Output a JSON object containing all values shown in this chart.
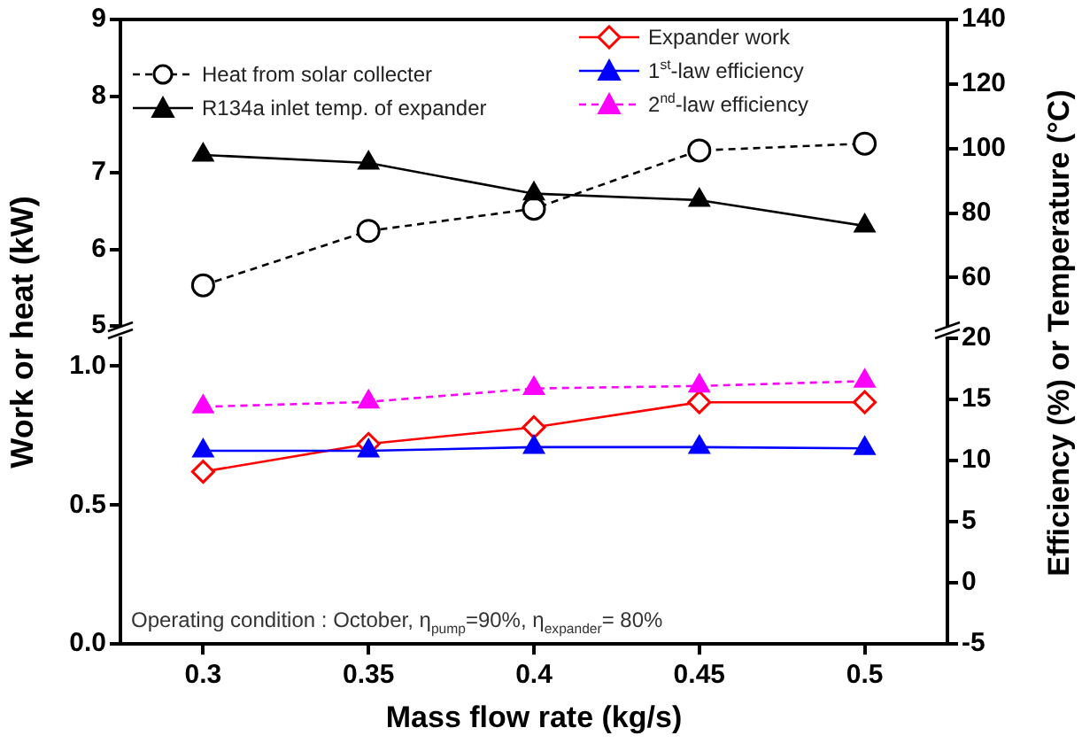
{
  "chart_data": [
    {
      "type": "line",
      "ylabel": "Work or heat (kW)",
      "y2label": "Efficiency (%) or Temperature (°C)",
      "legend": "top left",
      "tick_labels": "y",
      "x": [
        0.3,
        0.35,
        0.4,
        0.45,
        0.5
      ],
      "xlim": [
        0.275,
        0.525
      ],
      "ylim": [
        5,
        9
      ],
      "yticks": [
        5,
        6,
        7,
        8,
        9
      ],
      "y2lim": [
        45,
        140
      ],
      "y2ticks": [
        60,
        80,
        100,
        120,
        140
      ],
      "series": [
        {
          "name": "Heat from solar collecter",
          "color": "#000000",
          "marker": "circle",
          "line_style": "dashed",
          "values": [
            5.53,
            6.24,
            6.53,
            7.29,
            7.38
          ]
        },
        {
          "name": "R134a inlet temp. of expander",
          "color": "#000000",
          "axis": "y2",
          "marker": "triangle",
          "line_style": "solid",
          "values": [
            98,
            95.5,
            86,
            84,
            76
          ]
        }
      ]
    },
    {
      "type": "line",
      "xlabel": "Mass flow rate (kg/s)",
      "legend": "top right",
      "annotations": [
        "Operating condition : October, η$_{pump}$=90%, η$_{expander}$= 80%"
      ],
      "x": [
        0.3,
        0.35,
        0.4,
        0.45,
        0.5
      ],
      "xlim": [
        0.275,
        0.525
      ],
      "xticks": [
        0.3,
        0.35,
        0.4,
        0.45,
        0.5
      ],
      "ylim": [
        0,
        1.1
      ],
      "yticks": [
        {
          "value": 0,
          "label": "0.0"
        },
        {
          "value": 0.5,
          "label": "0.5"
        },
        {
          "value": 1,
          "label": "1.0"
        }
      ],
      "y2lim": [
        -5,
        20
      ],
      "y2ticks": [
        -5,
        0,
        5,
        10,
        15,
        20
      ],
      "series": [
        {
          "name": "Expander work",
          "color": "#ff0000",
          "marker": "diamond",
          "line_style": "solid",
          "values": [
            0.62,
            0.72,
            0.78,
            0.87,
            0.87
          ]
        },
        {
          "name": "1$^{st}$-law efficiency",
          "color": "#0000ff",
          "axis": "y2",
          "marker": "triangle",
          "line_style": "solid",
          "values": [
            10.8,
            10.8,
            11.1,
            11.1,
            11
          ]
        },
        {
          "name": "2$^{nd}$-law efficiency",
          "color": "#ff00ff",
          "axis": "y2",
          "marker": "triangle",
          "line_style": "dashed",
          "values": [
            14.4,
            14.8,
            15.9,
            16.1,
            16.5
          ]
        }
      ]
    }
  ]
}
